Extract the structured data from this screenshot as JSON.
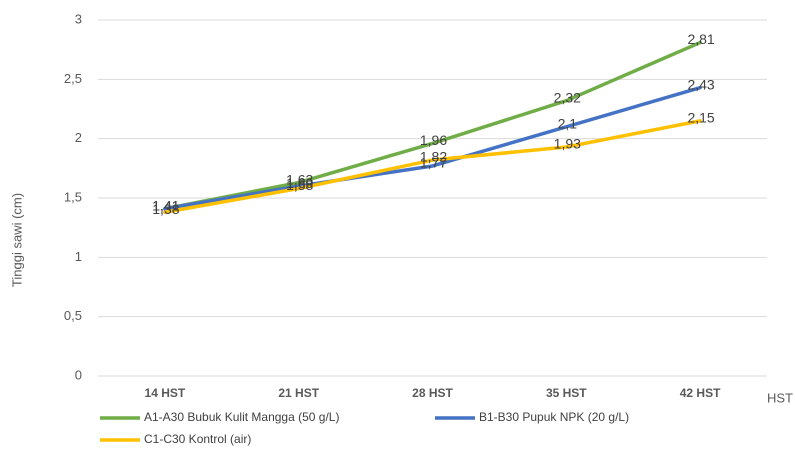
{
  "chart_data": {
    "type": "line",
    "y_label": "Tinggi sawi (cm)",
    "x_label": "HST",
    "categories": [
      "14 HST",
      "21 HST",
      "28 HST",
      "35 HST",
      "42 HST"
    ],
    "series": [
      {
        "name": "A1-A30 Bubuk Kulit Mangga (50 g/L)",
        "color": "#70ad47",
        "values": [
          1.41,
          1.63,
          1.96,
          2.32,
          2.81
        ],
        "value_labels": [
          "1,41",
          "1,63",
          "1,96",
          "2,32",
          "2,81"
        ]
      },
      {
        "name": "B1-B30 Pupuk NPK (20 g/L)",
        "color": "#4472c4",
        "values": [
          1.41,
          1.6,
          1.77,
          2.1,
          2.43
        ],
        "value_labels": [
          "1,41",
          "1,60",
          "1,77",
          "2,1",
          "2,43"
        ]
      },
      {
        "name": "C1-C30 Kontrol (air)",
        "color": "#ffc000",
        "values": [
          1.38,
          1.58,
          1.82,
          1.93,
          2.15
        ],
        "value_labels": [
          "1,38",
          "1,58",
          "1,82",
          "1,93",
          "2,15"
        ]
      }
    ],
    "ylim": [
      0,
      3
    ],
    "yticks": [
      0,
      {
        "value": 0.5,
        "label": "0,5"
      },
      1,
      {
        "value": 1.5,
        "label": "1,5"
      },
      2,
      {
        "value": 2.5,
        "label": "2,5"
      },
      3
    ],
    "grid": true
  }
}
